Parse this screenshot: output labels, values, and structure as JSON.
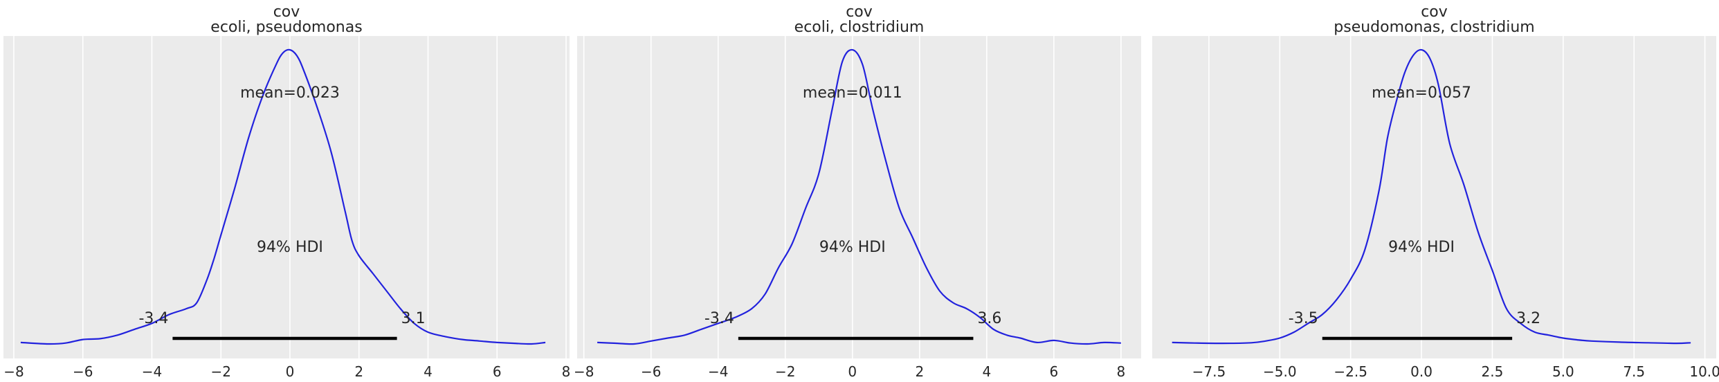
{
  "chart_data": [
    {
      "type": "line",
      "title": "cov",
      "subtitle": "ecoli, pseudomonas",
      "mean_label": "mean=0.023",
      "hdi_label": "94% HDI",
      "hdi": {
        "low": -3.4,
        "high": 3.1,
        "low_label": "-3.4",
        "high_label": "3.1"
      },
      "xlim": [
        -8.3,
        8.1
      ],
      "ticks": [
        -8,
        -6,
        -4,
        -2,
        0,
        2,
        4,
        6,
        8
      ],
      "tick_labels": [
        "−8",
        "−6",
        "−4",
        "−2",
        "0",
        "2",
        "4",
        "6",
        "8"
      ],
      "grid": true,
      "x": [
        -7.8,
        -7,
        -6.5,
        -6,
        -5.5,
        -5,
        -4.5,
        -4,
        -3.5,
        -3,
        -2.7,
        -2.4,
        -2.2,
        -2,
        -1.6,
        -1.2,
        -0.8,
        -0.4,
        -0.2,
        0,
        0.2,
        0.4,
        0.8,
        1.2,
        1.6,
        1.8,
        2,
        2.4,
        2.8,
        3.2,
        3.6,
        4,
        4.5,
        5,
        5.5,
        6,
        6.5,
        7,
        7.4
      ],
      "y": [
        0.005,
        0.0,
        0.003,
        0.015,
        0.018,
        0.03,
        0.05,
        0.07,
        0.1,
        0.12,
        0.14,
        0.22,
        0.29,
        0.37,
        0.53,
        0.7,
        0.84,
        0.95,
        0.99,
        1.0,
        0.98,
        0.93,
        0.8,
        0.65,
        0.45,
        0.35,
        0.3,
        0.24,
        0.18,
        0.12,
        0.07,
        0.04,
        0.025,
        0.015,
        0.01,
        0.005,
        0.002,
        0.0,
        0.005
      ]
    },
    {
      "type": "line",
      "title": "cov",
      "subtitle": "ecoli, clostridium",
      "mean_label": "mean=0.011",
      "hdi_label": "94% HDI",
      "hdi": {
        "low": -3.4,
        "high": 3.6,
        "low_label": "-3.4",
        "high_label": "3.6"
      },
      "xlim": [
        -8.2,
        8.6
      ],
      "ticks": [
        -8,
        -6,
        -4,
        -2,
        0,
        2,
        4,
        6,
        8
      ],
      "tick_labels": [
        "−8",
        "−6",
        "−4",
        "−2",
        "0",
        "2",
        "4",
        "6",
        "8"
      ],
      "grid": true,
      "x": [
        -7.6,
        -7,
        -6.5,
        -6,
        -5.5,
        -5,
        -4.5,
        -4,
        -3.5,
        -3,
        -2.6,
        -2.2,
        -1.8,
        -1.4,
        -1,
        -0.6,
        -0.3,
        0,
        0.3,
        0.6,
        1,
        1.4,
        1.8,
        2.2,
        2.6,
        3,
        3.4,
        3.8,
        4.2,
        4.6,
        5,
        5.5,
        6,
        6.5,
        7,
        7.5,
        8
      ],
      "y": [
        0.005,
        0.002,
        0.0,
        0.01,
        0.02,
        0.03,
        0.05,
        0.07,
        0.09,
        0.12,
        0.17,
        0.26,
        0.34,
        0.46,
        0.58,
        0.8,
        0.96,
        1.0,
        0.95,
        0.8,
        0.62,
        0.46,
        0.36,
        0.26,
        0.18,
        0.14,
        0.12,
        0.09,
        0.05,
        0.03,
        0.02,
        0.005,
        0.012,
        0.003,
        0.0,
        0.005,
        0.003
      ]
    },
    {
      "type": "line",
      "title": "cov",
      "subtitle": "pseudomonas, clostridium",
      "mean_label": "mean=0.057",
      "hdi_label": "94% HDI",
      "hdi": {
        "low": -3.5,
        "high": 3.2,
        "low_label": "-3.5",
        "high_label": "3.2"
      },
      "xlim": [
        -9.5,
        10.4
      ],
      "ticks": [
        -7.5,
        -5.0,
        -2.5,
        0.0,
        2.5,
        5.0,
        7.5,
        10.0
      ],
      "tick_labels": [
        "−7.5",
        "−5.0",
        "−2.5",
        "0.0",
        "2.5",
        "5.0",
        "7.5",
        "10.0"
      ],
      "grid": true,
      "x": [
        -8.8,
        -8,
        -7,
        -6,
        -5.5,
        -5,
        -4.5,
        -4,
        -3.5,
        -3,
        -2.5,
        -2,
        -1.5,
        -1.2,
        -0.9,
        -0.6,
        -0.3,
        0,
        0.3,
        0.6,
        1,
        1.5,
        2,
        2.5,
        3,
        3.5,
        4,
        4.5,
        5,
        5.5,
        6,
        7,
        8,
        9,
        9.5
      ],
      "y": [
        0.005,
        0.003,
        0.002,
        0.004,
        0.01,
        0.02,
        0.04,
        0.07,
        0.1,
        0.15,
        0.22,
        0.32,
        0.52,
        0.7,
        0.82,
        0.92,
        0.98,
        1.0,
        0.97,
        0.88,
        0.68,
        0.54,
        0.38,
        0.25,
        0.12,
        0.07,
        0.04,
        0.03,
        0.02,
        0.014,
        0.01,
        0.006,
        0.004,
        0.002,
        0.004
      ]
    }
  ]
}
